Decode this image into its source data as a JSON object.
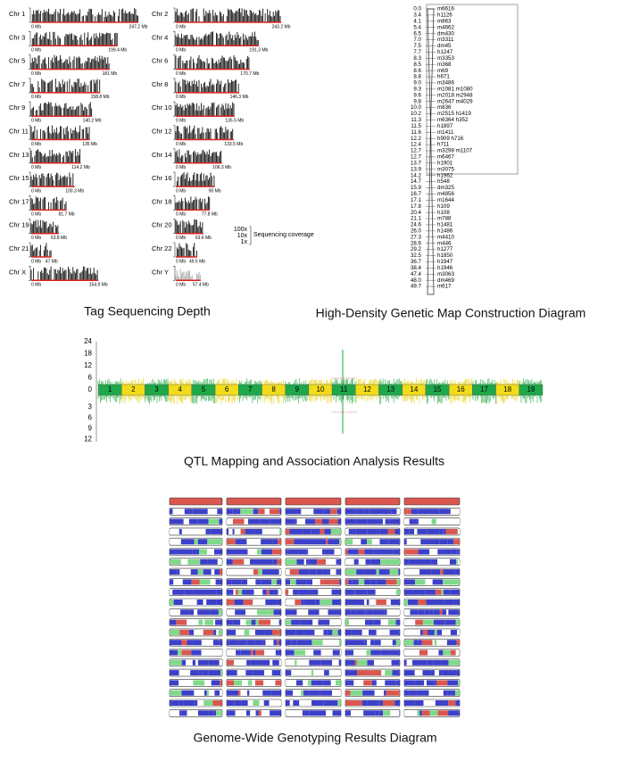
{
  "karyotype": {
    "caption": "Tag Sequencing Depth",
    "start_label": "0 Mb",
    "chromosomes": [
      {
        "name": "Chr 1",
        "length": 247.2,
        "length_label": "247.2 Mb"
      },
      {
        "name": "Chr 2",
        "length": 243.2,
        "length_label": "243.2 Mb"
      },
      {
        "name": "Chr 3",
        "length": 199.4,
        "length_label": "199.4 Mb"
      },
      {
        "name": "Chr 4",
        "length": 191.3,
        "length_label": "191.3 Mb"
      },
      {
        "name": "Chr 5",
        "length": 181,
        "length_label": "181 Mb"
      },
      {
        "name": "Chr 6",
        "length": 170.7,
        "length_label": "170.7 Mb"
      },
      {
        "name": "Chr 7",
        "length": 158.8,
        "length_label": "158.8 Mb"
      },
      {
        "name": "Chr 8",
        "length": 146.3,
        "length_label": "146.3 Mb"
      },
      {
        "name": "Chr 9",
        "length": 140.2,
        "length_label": "140.2 Mb"
      },
      {
        "name": "Chr 10",
        "length": 135.5,
        "length_label": "135.5 Mb"
      },
      {
        "name": "Chr 11",
        "length": 135,
        "length_label": "135 Mb"
      },
      {
        "name": "Chr 12",
        "length": 133.5,
        "length_label": "133.5 Mb"
      },
      {
        "name": "Chr 13",
        "length": 114.2,
        "length_label": "114.2 Mb"
      },
      {
        "name": "Chr 14",
        "length": 106.3,
        "length_label": "106.3 Mb"
      },
      {
        "name": "Chr 15",
        "length": 100.3,
        "length_label": "100.3 Mb"
      },
      {
        "name": "Chr 16",
        "length": 90,
        "length_label": "90 Mb"
      },
      {
        "name": "Chr 17",
        "length": 81.7,
        "length_label": "81.7 Mb"
      },
      {
        "name": "Chr 18",
        "length": 77.8,
        "length_label": "77.8 Mb"
      },
      {
        "name": "Chr 19",
        "length": 63.8,
        "length_label": "63.8 Mb"
      },
      {
        "name": "Chr 20",
        "length": 63.6,
        "length_label": "63.6 Mb"
      },
      {
        "name": "Chr 21",
        "length": 47,
        "length_label": "47 Mb"
      },
      {
        "name": "Chr 22",
        "length": 49.5,
        "length_label": "49.5 Mb"
      },
      {
        "name": "Chr X",
        "length": 154.9,
        "length_label": "154.9 Mb"
      },
      {
        "name": "Chr Y",
        "length": 57.4,
        "length_label": "57.4 Mb"
      }
    ],
    "legend": {
      "levels": [
        "100x",
        "10x",
        "1x"
      ],
      "label": "Sequencing coverage"
    }
  },
  "genetic_map": {
    "caption": "High-Density Genetic Map Construction Diagram",
    "rows": [
      {
        "pos": "0.0",
        "marker": "m6616"
      },
      {
        "pos": "3.4",
        "marker": "h1126"
      },
      {
        "pos": "4.1",
        "marker": "m863"
      },
      {
        "pos": "5.4",
        "marker": "m4662"
      },
      {
        "pos": "6.5",
        "marker": "dm430"
      },
      {
        "pos": "7.0",
        "marker": "m3311"
      },
      {
        "pos": "7.5",
        "marker": "dm45"
      },
      {
        "pos": "7.7",
        "marker": "h1247"
      },
      {
        "pos": "8.3",
        "marker": "m3353"
      },
      {
        "pos": "8.5",
        "marker": "m368"
      },
      {
        "pos": "8.6",
        "marker": "m69"
      },
      {
        "pos": "8.8",
        "marker": "h671"
      },
      {
        "pos": "9.0",
        "marker": "m3486"
      },
      {
        "pos": "9.3",
        "marker": "m1081 m1080"
      },
      {
        "pos": "9.6",
        "marker": "m2018 m2948"
      },
      {
        "pos": "9.8",
        "marker": "m2647 m4029"
      },
      {
        "pos": "10.0",
        "marker": "m836"
      },
      {
        "pos": "10.2",
        "marker": "m2515 h1419"
      },
      {
        "pos": "11.3",
        "marker": "m6364 h352"
      },
      {
        "pos": "11.5",
        "marker": "h1897"
      },
      {
        "pos": "11.6",
        "marker": "m1411"
      },
      {
        "pos": "12.2",
        "marker": "h909 h716"
      },
      {
        "pos": "12.4",
        "marker": "h711"
      },
      {
        "pos": "12.7",
        "marker": "m3298 m1107"
      },
      {
        "pos": "12.7",
        "marker": "m6467"
      },
      {
        "pos": "13.7",
        "marker": "h1901"
      },
      {
        "pos": "13.9",
        "marker": "m3075"
      },
      {
        "pos": "14.2",
        "marker": "h1962"
      },
      {
        "pos": "14.7",
        "marker": "h548"
      },
      {
        "pos": "15.9",
        "marker": "dm325"
      },
      {
        "pos": "16.7",
        "marker": "m4856"
      },
      {
        "pos": "17.1",
        "marker": "m1644"
      },
      {
        "pos": "17.8",
        "marker": "h109"
      },
      {
        "pos": "20.4",
        "marker": "h108"
      },
      {
        "pos": "21.1",
        "marker": "m788"
      },
      {
        "pos": "24.6",
        "marker": "h1481"
      },
      {
        "pos": "26.0",
        "marker": "h1486"
      },
      {
        "pos": "27.3",
        "marker": "m4410"
      },
      {
        "pos": "28.6",
        "marker": "m446"
      },
      {
        "pos": "29.2",
        "marker": "h1277"
      },
      {
        "pos": "32.5",
        "marker": "h1850"
      },
      {
        "pos": "36.7",
        "marker": "h1947"
      },
      {
        "pos": "38.4",
        "marker": "h1946"
      },
      {
        "pos": "47.4",
        "marker": "m3063"
      },
      {
        "pos": "48.0",
        "marker": "dm469"
      },
      {
        "pos": "49.7",
        "marker": "m617"
      }
    ]
  },
  "qtl": {
    "caption": "QTL Mapping and Association Analysis Results",
    "upper_ticks": [
      "24",
      "18",
      "12",
      "6",
      "0"
    ],
    "lower_ticks": [
      "3",
      "6",
      "9",
      "12"
    ],
    "chromosomes": [
      "1",
      "2",
      "3",
      "4",
      "5",
      "6",
      "7",
      "8",
      "9",
      "10",
      "11",
      "12",
      "13",
      "14",
      "15",
      "16",
      "17",
      "18",
      "19"
    ]
  },
  "genotyping": {
    "caption": "Genome-Wide Genotyping Results Diagram"
  }
}
